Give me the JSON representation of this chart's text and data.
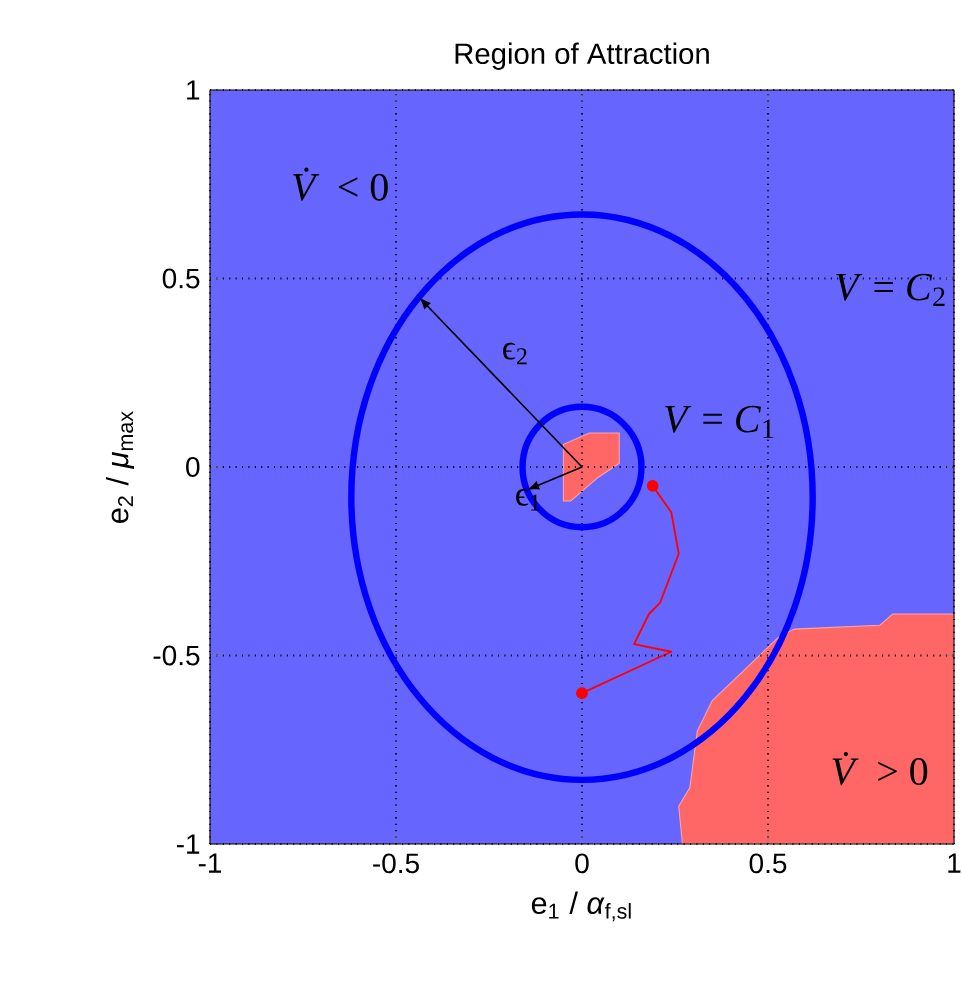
{
  "chart_data": {
    "type": "line",
    "title": "Region of Attraction",
    "xlabel": "e$_{1}$ / *α*$_{f,sl}$",
    "ylabel": "e$_{2}$ / *μ*$_{max}$",
    "xlim": [
      -1,
      1
    ],
    "ylim": [
      -1,
      1
    ],
    "xticks": [
      -1,
      -0.5,
      0,
      0.5,
      1
    ],
    "yticks": [
      -1,
      -0.5,
      0,
      0.5,
      1
    ],
    "grid": true,
    "series": [
      {
        "type": "area",
        "color": "#ff6666",
        "x": [
          0.27,
          0.26,
          0.29,
          0.31,
          0.35,
          0.53,
          0.57,
          0.8,
          0.835,
          1,
          1
        ],
        "values": [
          -1,
          -0.9,
          -0.85,
          -0.7,
          -0.62,
          -0.45,
          -0.43,
          -0.42,
          -0.39,
          -0.39,
          -1
        ]
      },
      {
        "type": "area",
        "color": "#ff6666",
        "x": [
          -0.05,
          0.02,
          0.1,
          0.1,
          0.04,
          -0.03,
          -0.05
        ],
        "values": [
          0.06,
          0.09,
          0.09,
          0.01,
          -0.03,
          -0.09,
          -0.09
        ]
      },
      {
        "color": "#ff0000",
        "x": [
          0,
          0.24,
          0.14,
          0.18,
          0.21,
          0.26,
          0.24,
          0.19
        ],
        "values": [
          -0.6,
          -0.49,
          -0.47,
          -0.39,
          -0.36,
          -0.23,
          -0.12,
          -0.05
        ]
      },
      {
        "type": "scatter",
        "color": "#ff0000",
        "marker": "circle",
        "x": [
          0.19,
          0
        ],
        "values": [
          -0.05,
          -0.6
        ]
      }
    ],
    "annotations": [
      "*V̇* < 0",
      "*V* = *C*$_{2}$",
      "*V* = *C*$_{1}$",
      "*V̇* > 0",
      "ϵ$_{2}$",
      "ϵ$_{1}$"
    ]
  }
}
